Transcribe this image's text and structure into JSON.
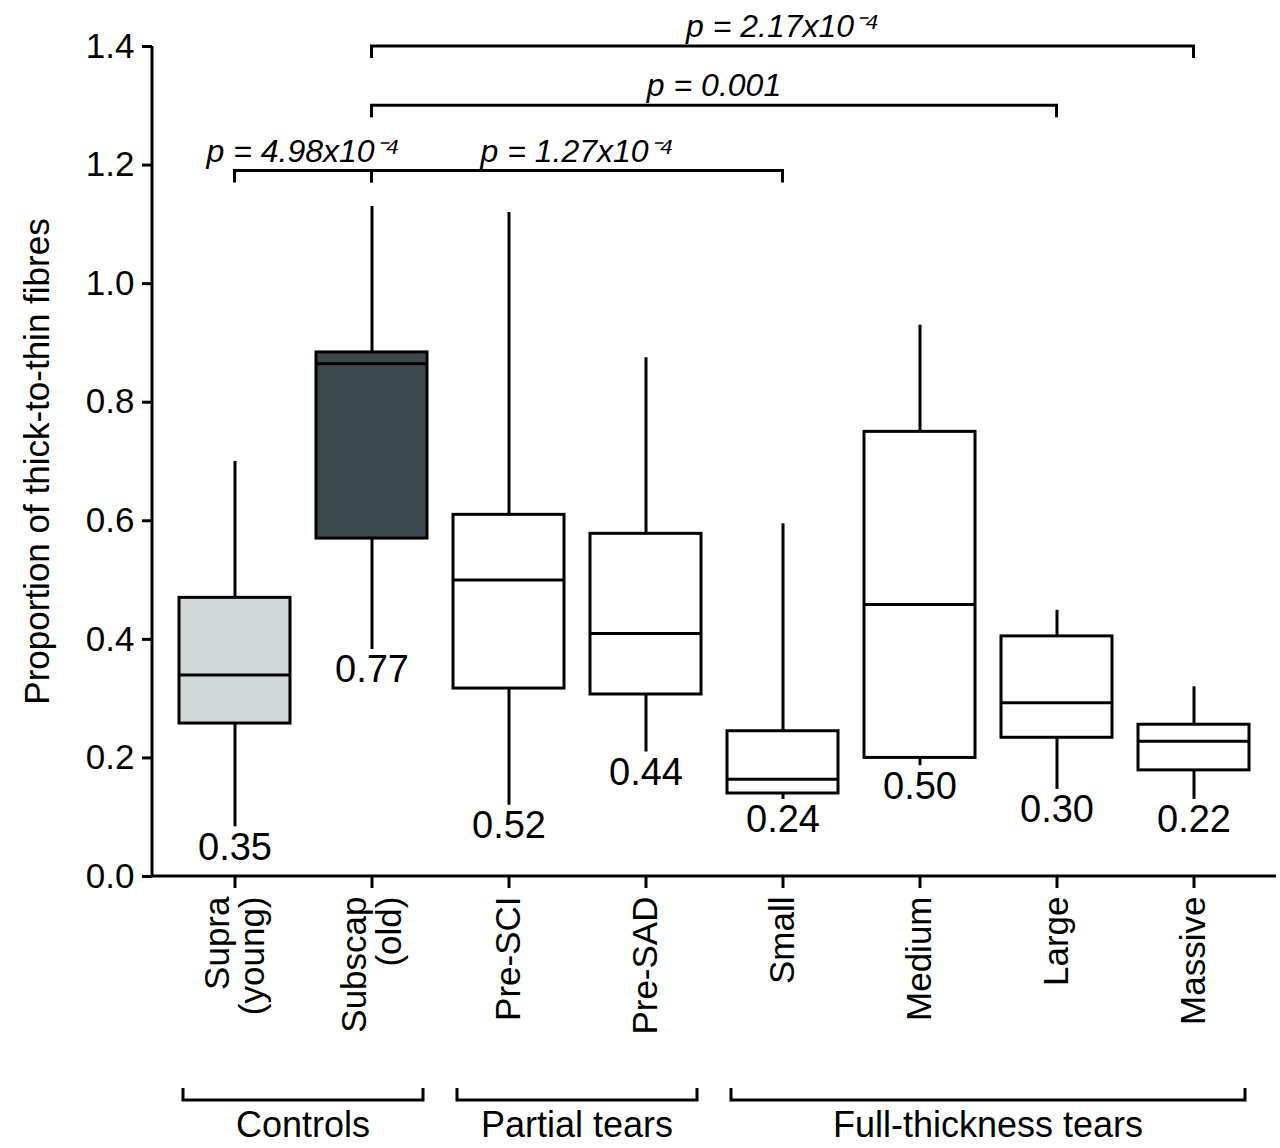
{
  "chart_data": {
    "type": "box",
    "ylabel": "Proportion of thick-to-thin fibres",
    "categories": [
      "Supra (young)",
      "Subscap (old)",
      "Pre-SCI",
      "Pre-SAD",
      "Small",
      "Medium",
      "Large",
      "Massive"
    ],
    "colors": [
      "#d2d7d7",
      "#3d4a4c",
      "#ffffff",
      "#ffffff",
      "#ffffff",
      "#ffffff",
      "#ffffff",
      "#ffffff"
    ],
    "min": [
      0.084,
      0.383,
      0.12,
      0.21,
      0.13,
      0.187,
      0.147,
      0.13
    ],
    "q1": [
      0.258,
      0.57,
      0.317,
      0.307,
      0.14,
      0.2,
      0.234,
      0.179
    ],
    "median": [
      0.34,
      0.865,
      0.5,
      0.41,
      0.164,
      0.459,
      0.293,
      0.228
    ],
    "q3": [
      0.47,
      0.884,
      0.61,
      0.578,
      0.245,
      0.75,
      0.405,
      0.256
    ],
    "max": [
      0.7,
      1.13,
      1.12,
      0.875,
      0.595,
      0.93,
      0.449,
      0.32
    ],
    "means": [
      0.35,
      0.77,
      0.52,
      0.44,
      0.24,
      0.5,
      0.3,
      0.22
    ],
    "ylim": [
      0,
      1.4
    ],
    "yticks": [
      {
        "value": 0,
        "label": "0.0"
      },
      0.2,
      0.4,
      0.6,
      0.8,
      {
        "value": 1,
        "label": "1.0"
      },
      1.2,
      1.4
    ],
    "comparisons": [
      {
        "from": "Supra (young)",
        "to": "Subscap (old)",
        "y": 1.19,
        "label": "p = 4.98x10⁻⁴"
      },
      {
        "from": "Subscap (old)",
        "to": "Small",
        "y": 1.19,
        "label": "p = 1.27x10⁻⁴"
      },
      {
        "from": "Subscap (old)",
        "to": "Large",
        "y": 1.3,
        "label": "p = 0.001"
      },
      {
        "from": "Subscap (old)",
        "to": "Massive",
        "y": 1.4,
        "label": "p = 2.17x10⁻⁴"
      }
    ],
    "groups": [
      {
        "name": "Controls",
        "categories": [
          "Supra (young)",
          "Subscap (old)"
        ]
      },
      {
        "name": "Partial tears",
        "categories": [
          "Pre-SCI",
          "Pre-SAD"
        ]
      },
      {
        "name": "Full-thickness tears",
        "categories": [
          "Small",
          "Medium",
          "Large",
          "Massive"
        ]
      }
    ]
  }
}
